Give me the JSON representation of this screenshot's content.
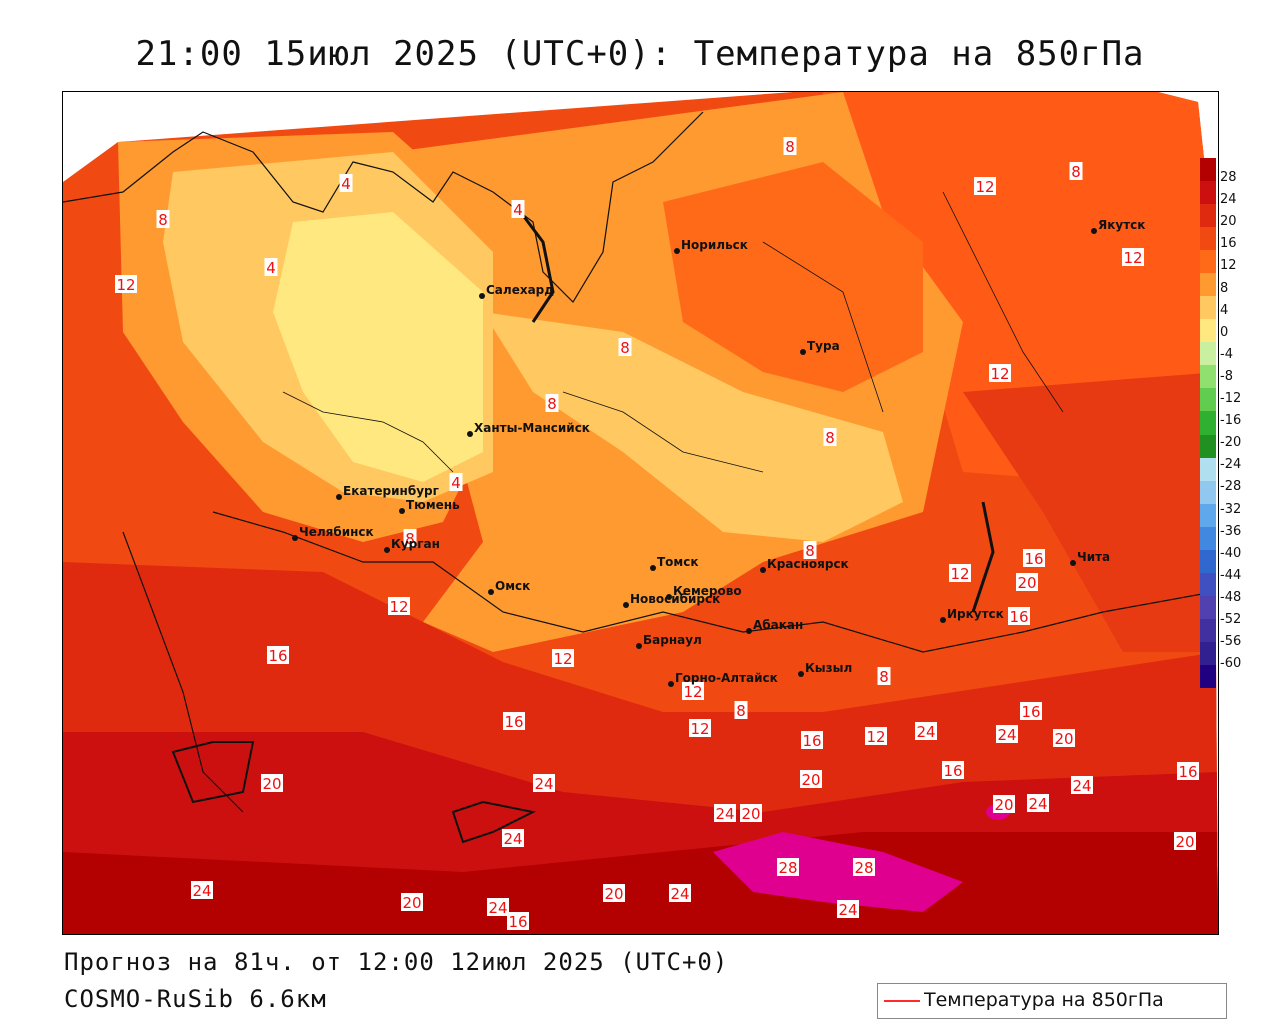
{
  "header": {
    "title": "21:00 15июл 2025 (UTC+0): Температура на 850гПа"
  },
  "footer": {
    "forecast": "Прогноз на 81ч. от 12:00 12июл 2025 (UTC+0)",
    "model": "COSMO-RuSib 6.6км"
  },
  "legend": {
    "line_label": "Температура на 850гПа",
    "line_color": "#ff2a2a"
  },
  "scale": {
    "labels": [
      "28",
      "24",
      "20",
      "16",
      "12",
      "8",
      "4",
      "0",
      "-4",
      "-8",
      "-12",
      "-16",
      "-20",
      "-24",
      "-28",
      "-32",
      "-36",
      "-40",
      "-44",
      "-48",
      "-52",
      "-56",
      "-60"
    ],
    "colors": [
      "#b30000",
      "#cc1010",
      "#e02a10",
      "#f04a12",
      "#ff6a18",
      "#ff9a30",
      "#ffc860",
      "#ffe880",
      "#c8f0a0",
      "#90e070",
      "#60cc50",
      "#30b030",
      "#209020",
      "#b0e0f0",
      "#90c8f0",
      "#60a8ec",
      "#4088e0",
      "#3068d0",
      "#4050c0",
      "#5040b0",
      "#4030a0",
      "#302090",
      "#200080"
    ]
  },
  "cities": [
    {
      "name": "Норильск"
    },
    {
      "name": "Якутск"
    },
    {
      "name": "Салехард"
    },
    {
      "name": "Тура"
    },
    {
      "name": "Ханты-Мансийск"
    },
    {
      "name": "Екатеринбург"
    },
    {
      "name": "Тюмень"
    },
    {
      "name": "Челябинск"
    },
    {
      "name": "Курган"
    },
    {
      "name": "Томск"
    },
    {
      "name": "Красноярск"
    },
    {
      "name": "Омск"
    },
    {
      "name": "Новосибирск"
    },
    {
      "name": "Кемерово"
    },
    {
      "name": "Абакан"
    },
    {
      "name": "Барнаул"
    },
    {
      "name": "Иркутск"
    },
    {
      "name": "Чита"
    },
    {
      "name": "Горно-Алтайск"
    },
    {
      "name": "Кызыл"
    }
  ],
  "contour_labels": {
    "values": [
      "8",
      "4",
      "12",
      "4",
      "4",
      "8",
      "8",
      "12",
      "8",
      "12",
      "12",
      "8",
      "4",
      "8",
      "8",
      "12",
      "8",
      "12",
      "16",
      "20",
      "16",
      "16",
      "12",
      "12",
      "8",
      "12",
      "8",
      "16",
      "16",
      "12",
      "16",
      "24",
      "20",
      "16",
      "20",
      "20",
      "24",
      "20",
      "24",
      "16",
      "24",
      "24",
      "20",
      "24",
      "20",
      "20",
      "28",
      "28",
      "24",
      "24",
      "24",
      "24",
      "20",
      "16",
      "24"
    ]
  }
}
